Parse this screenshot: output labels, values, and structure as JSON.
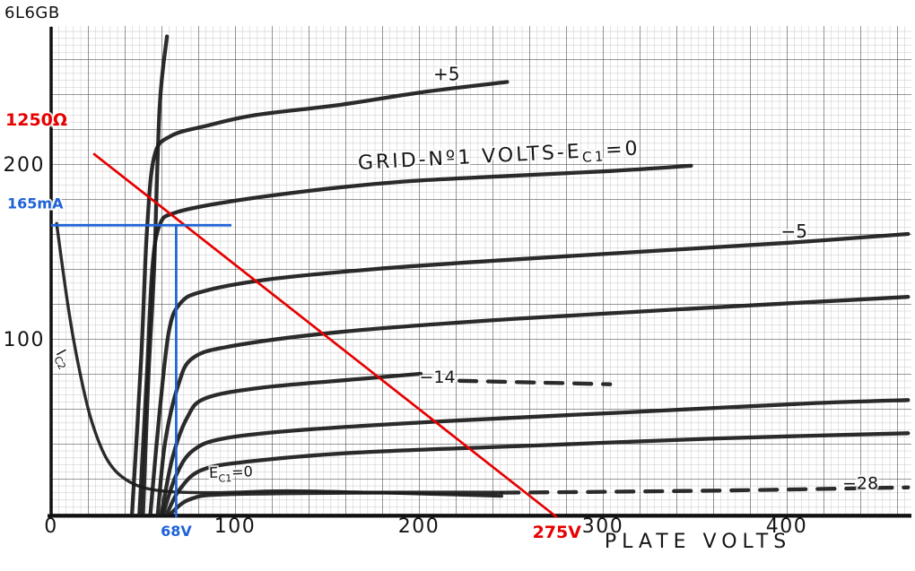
{
  "page": {
    "title": "6L6GB"
  },
  "colors": {
    "load_line_red": "#e60000",
    "operating_point_blue": "#1f63d6",
    "ink": "#1b1b1b"
  },
  "chart_data": {
    "type": "line",
    "title": "6L6GB",
    "xlabel": "PLATE VOLTS",
    "ylabel": "",
    "xlim": [
      0,
      468
    ],
    "ylim": [
      0,
      275
    ],
    "x_ticks": [
      0,
      100,
      200,
      300,
      400
    ],
    "y_ticks": [
      100,
      200
    ],
    "grid": "fine graph paper, bold line every 5 divisions",
    "x_units": "volts",
    "y_units": "mA",
    "series": [
      {
        "name": "ec1-plus5",
        "points": [
          [
            44,
            0
          ],
          [
            49,
            89
          ],
          [
            52,
            160
          ],
          [
            56,
            204
          ],
          [
            65,
            216
          ],
          [
            85,
            222
          ],
          [
            111,
            228
          ],
          [
            158,
            234
          ],
          [
            201,
            241
          ],
          [
            248,
            247
          ]
        ]
      },
      {
        "name": "ec1-0",
        "points": [
          [
            48,
            0
          ],
          [
            52,
            78
          ],
          [
            55,
            140
          ],
          [
            59,
            165
          ],
          [
            67,
            172
          ],
          [
            94,
            178
          ],
          [
            143,
            185
          ],
          [
            192,
            190
          ],
          [
            245,
            193
          ],
          [
            304,
            196
          ],
          [
            348,
            199
          ]
        ]
      },
      {
        "name": "ec1-minus5",
        "points": [
          [
            54,
            0
          ],
          [
            59,
            58
          ],
          [
            64,
            104
          ],
          [
            70,
            120
          ],
          [
            82,
            127
          ],
          [
            118,
            134
          ],
          [
            177,
            140
          ],
          [
            245,
            145
          ],
          [
            323,
            150
          ],
          [
            401,
            155
          ],
          [
            466,
            160
          ]
        ]
      },
      {
        "name": "ec1-minus10",
        "points": [
          [
            58,
            0
          ],
          [
            62,
            41
          ],
          [
            69,
            73
          ],
          [
            77,
            89
          ],
          [
            99,
            96
          ],
          [
            158,
            104
          ],
          [
            245,
            111
          ],
          [
            343,
            117
          ],
          [
            466,
            124
          ]
        ]
      },
      {
        "name": "ec1-minus14",
        "points": [
          [
            60,
            0
          ],
          [
            66,
            32
          ],
          [
            74,
            55
          ],
          [
            84,
            66
          ],
          [
            114,
            72
          ],
          [
            167,
            77
          ],
          [
            201,
            80
          ]
        ]
      },
      {
        "name": "ec1-minus14-dashed",
        "dash": true,
        "points": [
          [
            222,
            76
          ],
          [
            265,
            75
          ],
          [
            304,
            74
          ]
        ]
      },
      {
        "name": "ec1-minus20",
        "points": [
          [
            61,
            0
          ],
          [
            68,
            22
          ],
          [
            77,
            36
          ],
          [
            94,
            43
          ],
          [
            138,
            48
          ],
          [
            216,
            53
          ],
          [
            314,
            58
          ],
          [
            411,
            63
          ],
          [
            466,
            65
          ]
        ]
      },
      {
        "name": "ec1-minus24",
        "points": [
          [
            63,
            0
          ],
          [
            70,
            14
          ],
          [
            82,
            25
          ],
          [
            109,
            30
          ],
          [
            167,
            35
          ],
          [
            265,
            39
          ],
          [
            362,
            43
          ],
          [
            466,
            46
          ]
        ]
      },
      {
        "name": "ec1-minus28",
        "points": [
          [
            65,
            0
          ],
          [
            75,
            8
          ],
          [
            94,
            11
          ],
          [
            167,
            12
          ],
          [
            245,
            12
          ]
        ]
      },
      {
        "name": "ec1-minus28-dashed",
        "dash": true,
        "points": [
          [
            245,
            12
          ],
          [
            304,
            12.5
          ],
          [
            382,
            13.5
          ],
          [
            466,
            15
          ]
        ]
      },
      {
        "name": "screen-current-ic2",
        "thin": true,
        "points": [
          [
            3,
            166
          ],
          [
            9,
            120
          ],
          [
            15,
            84
          ],
          [
            22,
            53
          ],
          [
            31,
            30
          ],
          [
            43,
            18
          ],
          [
            60,
            13
          ],
          [
            89,
            12
          ],
          [
            128,
            13
          ],
          [
            177,
            12
          ],
          [
            245,
            10
          ]
        ]
      },
      {
        "name": "saturation-line",
        "points": [
          [
            50,
            0
          ],
          [
            53,
            80
          ],
          [
            56,
            140
          ],
          [
            59,
            232
          ],
          [
            63,
            273
          ]
        ]
      }
    ],
    "curve_labels": [
      {
        "name": "label-plus5",
        "text": "+5",
        "v": 215,
        "i": 248,
        "size": 20
      },
      {
        "name": "label-grid-no1-volts-ec1-0",
        "pre": "GRID-Nº1 VOLTS-E",
        "sub": "C1",
        "post": "=0",
        "v": 167,
        "i": 197,
        "rotate": -3,
        "anchor": "start",
        "size": 22,
        "spacing": 3
      },
      {
        "name": "label-minus5",
        "text": "−5",
        "v": 404,
        "i": 158,
        "size": 20
      },
      {
        "name": "label-minus14",
        "text": "−14",
        "v": 210,
        "i": 75,
        "size": 19
      },
      {
        "name": "label-minus28",
        "text": "−28",
        "v": 440,
        "i": 14,
        "size": 19
      },
      {
        "name": "label-ic2",
        "pre": "I",
        "sub": "C2",
        "post": "",
        "v": 2.5,
        "i": 92,
        "rotate": 62,
        "anchor": "start",
        "size": 16
      },
      {
        "name": "label-ec1-0",
        "pre": "E",
        "sub": "C1",
        "post": "=0",
        "v": 86,
        "i": 20.5,
        "rotate": -2,
        "anchor": "start",
        "size": 16
      }
    ],
    "annotations": {
      "load_line": {
        "label": "1250Ω",
        "from": [
          23,
          206
        ],
        "to": [
          275,
          0
        ],
        "end_label": "275V"
      },
      "operating_point": {
        "plate_volts": 68,
        "plate_current_ma": 165,
        "v_label": "68V",
        "i_label": "165mA"
      }
    }
  }
}
